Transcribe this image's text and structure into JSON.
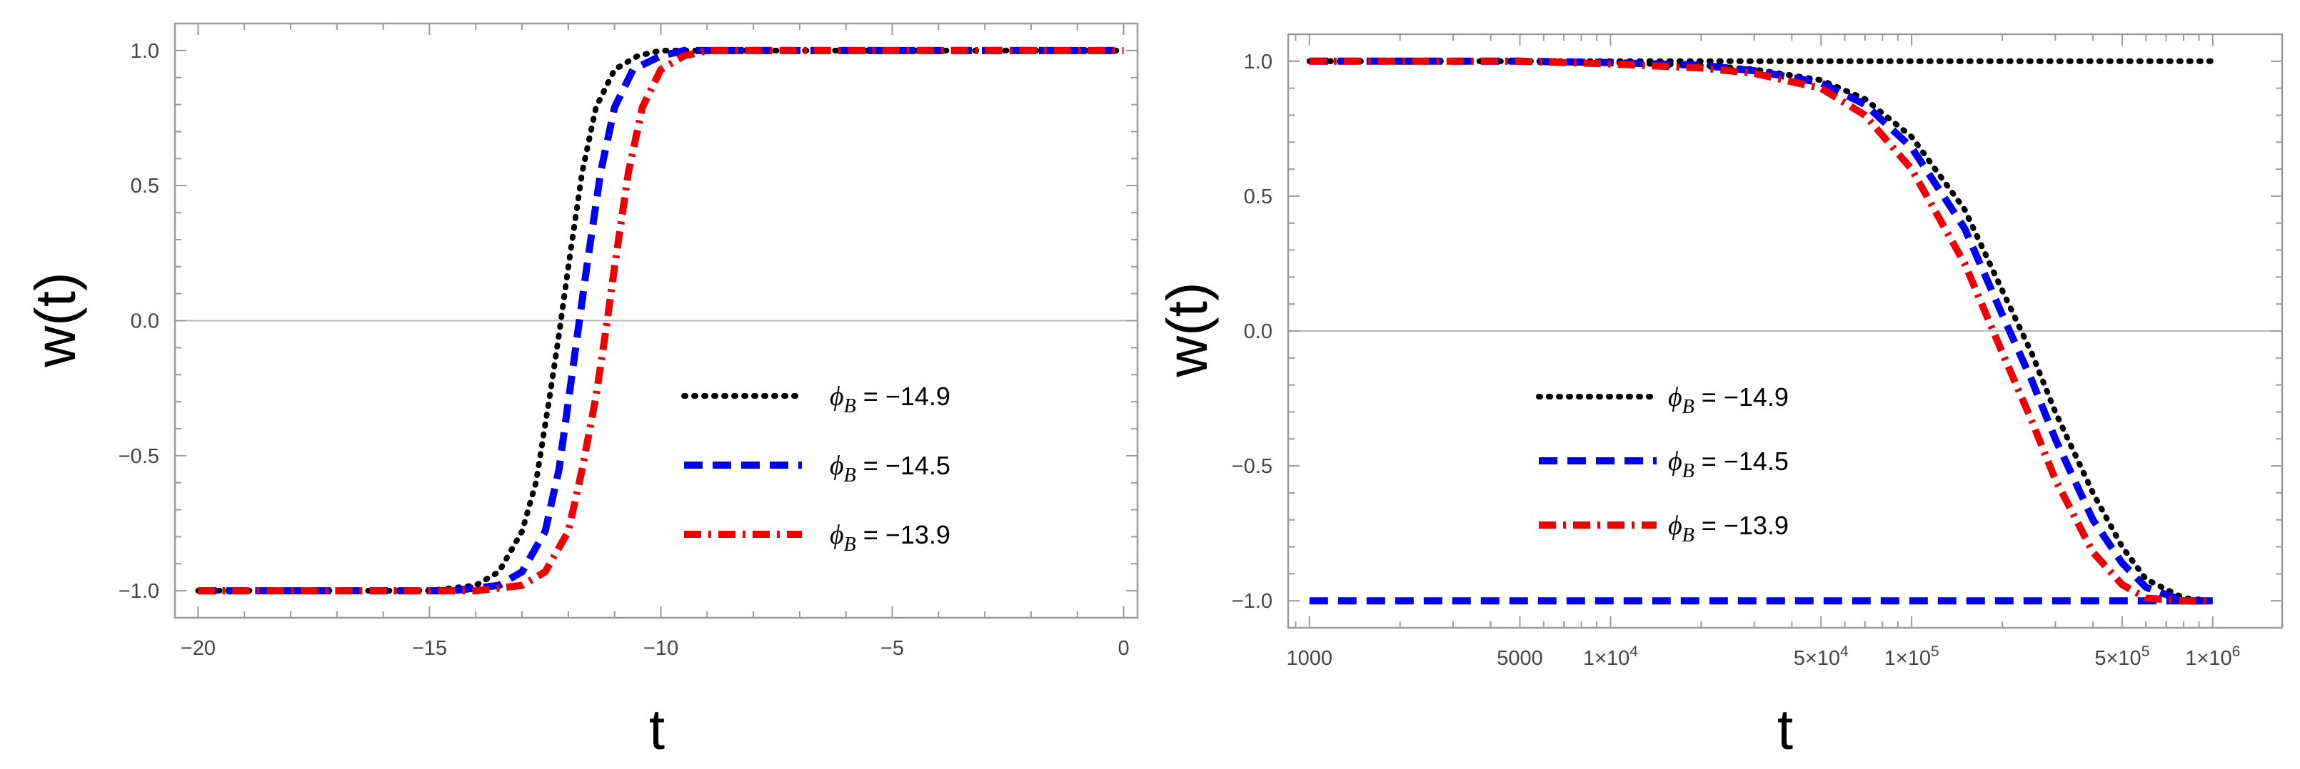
{
  "chart_data": [
    {
      "type": "line",
      "xlabel": "t",
      "ylabel": "w(t)",
      "xlim": [
        -20.5,
        0.3
      ],
      "ylim": [
        -1.1,
        1.1
      ],
      "xscale": "linear",
      "x_ticks": [
        {
          "value": -20,
          "label": "−20"
        },
        {
          "value": -15,
          "label": "−15"
        },
        {
          "value": -10,
          "label": "−10"
        },
        {
          "value": -5,
          "label": "−5"
        },
        {
          "value": 0,
          "label": "0"
        }
      ],
      "y_ticks": [
        {
          "value": 1,
          "label": "1.0"
        },
        {
          "value": 0.5,
          "label": "0.5"
        },
        {
          "value": 0,
          "label": "0.0"
        },
        {
          "value": -0.5,
          "label": "−0.5"
        },
        {
          "value": -1,
          "label": "−1.0"
        }
      ],
      "zero_line": true,
      "frame": true,
      "grid": false,
      "legend_position": "lower-right",
      "series": [
        {
          "name": "ϕB = −14.9",
          "color": "#000000",
          "style": "dotted",
          "x": [
            -20,
            -15,
            -14,
            -13.5,
            -13,
            -12.7,
            -12.4,
            -12.2,
            -12,
            -11.7,
            -11.4,
            -11,
            -10.5,
            -10,
            -5,
            0
          ],
          "y": [
            -1,
            -1,
            -0.98,
            -0.93,
            -0.78,
            -0.6,
            -0.28,
            -0.05,
            0.2,
            0.55,
            0.79,
            0.93,
            0.98,
            1,
            1,
            1
          ]
        },
        {
          "name": "ϕB = −14.5",
          "color": "#0000ee",
          "style": "dashed",
          "x": [
            -20,
            -14.5,
            -13.5,
            -13,
            -12.5,
            -12.2,
            -12,
            -11.8,
            -11.6,
            -11.3,
            -11,
            -10.6,
            -10,
            -9.5,
            -5,
            0
          ],
          "y": [
            -1,
            -1,
            -0.98,
            -0.93,
            -0.78,
            -0.55,
            -0.3,
            -0.05,
            0.2,
            0.55,
            0.79,
            0.93,
            0.98,
            1,
            1,
            1
          ]
        },
        {
          "name": "ϕB = −13.9",
          "color": "#ee0000",
          "style": "dashdot",
          "x": [
            -20,
            -14,
            -13,
            -12.5,
            -12,
            -11.7,
            -11.4,
            -11.2,
            -11,
            -10.7,
            -10.4,
            -10,
            -9.5,
            -9,
            -5,
            0
          ],
          "y": [
            -1,
            -1,
            -0.98,
            -0.93,
            -0.78,
            -0.55,
            -0.28,
            -0.05,
            0.2,
            0.55,
            0.79,
            0.93,
            0.98,
            1,
            1,
            1
          ]
        }
      ]
    },
    {
      "type": "line",
      "xlabel": "t",
      "ylabel": "w(t)",
      "xlim": [
        850,
        1700000
      ],
      "ylim": [
        -1.1,
        1.1
      ],
      "xscale": "log",
      "x_ticks": [
        {
          "value": 1000,
          "label": "1000",
          "style": "plain"
        },
        {
          "value": 5000,
          "label": "5000",
          "style": "plain"
        },
        {
          "value": 10000,
          "mant": "1",
          "exp": "4",
          "style": "sci"
        },
        {
          "value": 50000,
          "mant": "5",
          "exp": "4",
          "style": "sci"
        },
        {
          "value": 100000,
          "mant": "1",
          "exp": "5",
          "style": "sci"
        },
        {
          "value": 500000,
          "mant": "5",
          "exp": "5",
          "style": "sci"
        },
        {
          "value": 1000000,
          "mant": "1",
          "exp": "6",
          "style": "sci"
        }
      ],
      "y_ticks": [
        {
          "value": 1,
          "label": "1.0"
        },
        {
          "value": 0.5,
          "label": "0.5"
        },
        {
          "value": 0,
          "label": "0.0"
        },
        {
          "value": -0.5,
          "label": "−0.5"
        },
        {
          "value": -1,
          "label": "−1.0"
        }
      ],
      "zero_line": true,
      "frame": true,
      "grid": false,
      "legend_position": "center-left",
      "series": [
        {
          "name": "ϕB = −14.9",
          "color": "#000000",
          "style": "dotted",
          "x": [
            1000,
            5000,
            10000,
            20000,
            30000,
            50000,
            70000,
            100000,
            150000,
            200000,
            250000,
            300000,
            400000,
            500000,
            600000,
            800000,
            1000000
          ],
          "y": [
            1,
            1,
            1,
            1,
            1,
            1,
            1,
            1,
            1,
            1,
            1,
            1,
            1,
            1,
            1,
            1,
            1
          ]
        },
        {
          "name": "",
          "color": "#000000",
          "style": "dotted",
          "x": [
            1000,
            5000,
            10000,
            20000,
            30000,
            50000,
            70000,
            100000,
            150000,
            200000,
            250000,
            300000,
            400000,
            500000,
            600000,
            800000,
            1000000
          ],
          "y": [
            1,
            1,
            0.995,
            0.985,
            0.97,
            0.93,
            0.86,
            0.72,
            0.45,
            0.15,
            -0.08,
            -0.3,
            -0.6,
            -0.8,
            -0.92,
            -0.99,
            -1
          ]
        },
        {
          "name": "ϕB = −14.5",
          "color": "#0000ee",
          "style": "dashed",
          "x": [
            1000,
            5000,
            10000,
            20000,
            30000,
            50000,
            70000,
            100000,
            150000,
            200000,
            250000,
            300000,
            400000,
            500000,
            600000,
            800000,
            1000000
          ],
          "y": [
            1,
            1,
            0.995,
            0.985,
            0.965,
            0.92,
            0.84,
            0.68,
            0.38,
            0.06,
            -0.18,
            -0.4,
            -0.7,
            -0.86,
            -0.95,
            -1,
            -1
          ]
        },
        {
          "name": "",
          "color": "#0000ee",
          "style": "dashed",
          "x": [
            1000,
            5000,
            10000,
            20000,
            30000,
            50000,
            70000,
            100000,
            150000,
            200000,
            250000,
            300000,
            400000,
            500000,
            600000,
            800000,
            1000000
          ],
          "y": [
            -1,
            -1,
            -1,
            -1,
            -1,
            -1,
            -1,
            -1,
            -1,
            -1,
            -1,
            -1,
            -1,
            -1,
            -1,
            -1,
            -1
          ]
        },
        {
          "name": "ϕB = −13.9",
          "color": "#ee0000",
          "style": "dashdot",
          "x": [
            1000,
            5000,
            10000,
            20000,
            30000,
            50000,
            70000,
            100000,
            150000,
            200000,
            250000,
            300000,
            400000,
            500000,
            600000,
            800000,
            1000000
          ],
          "y": [
            1,
            1,
            0.99,
            0.975,
            0.955,
            0.9,
            0.8,
            0.6,
            0.25,
            -0.08,
            -0.33,
            -0.55,
            -0.82,
            -0.94,
            -0.99,
            -1,
            -1
          ]
        }
      ]
    }
  ],
  "colors": {
    "frame": "#9a9a9a",
    "zero_line": "#b8b8b8",
    "tick_label": "#444444"
  }
}
